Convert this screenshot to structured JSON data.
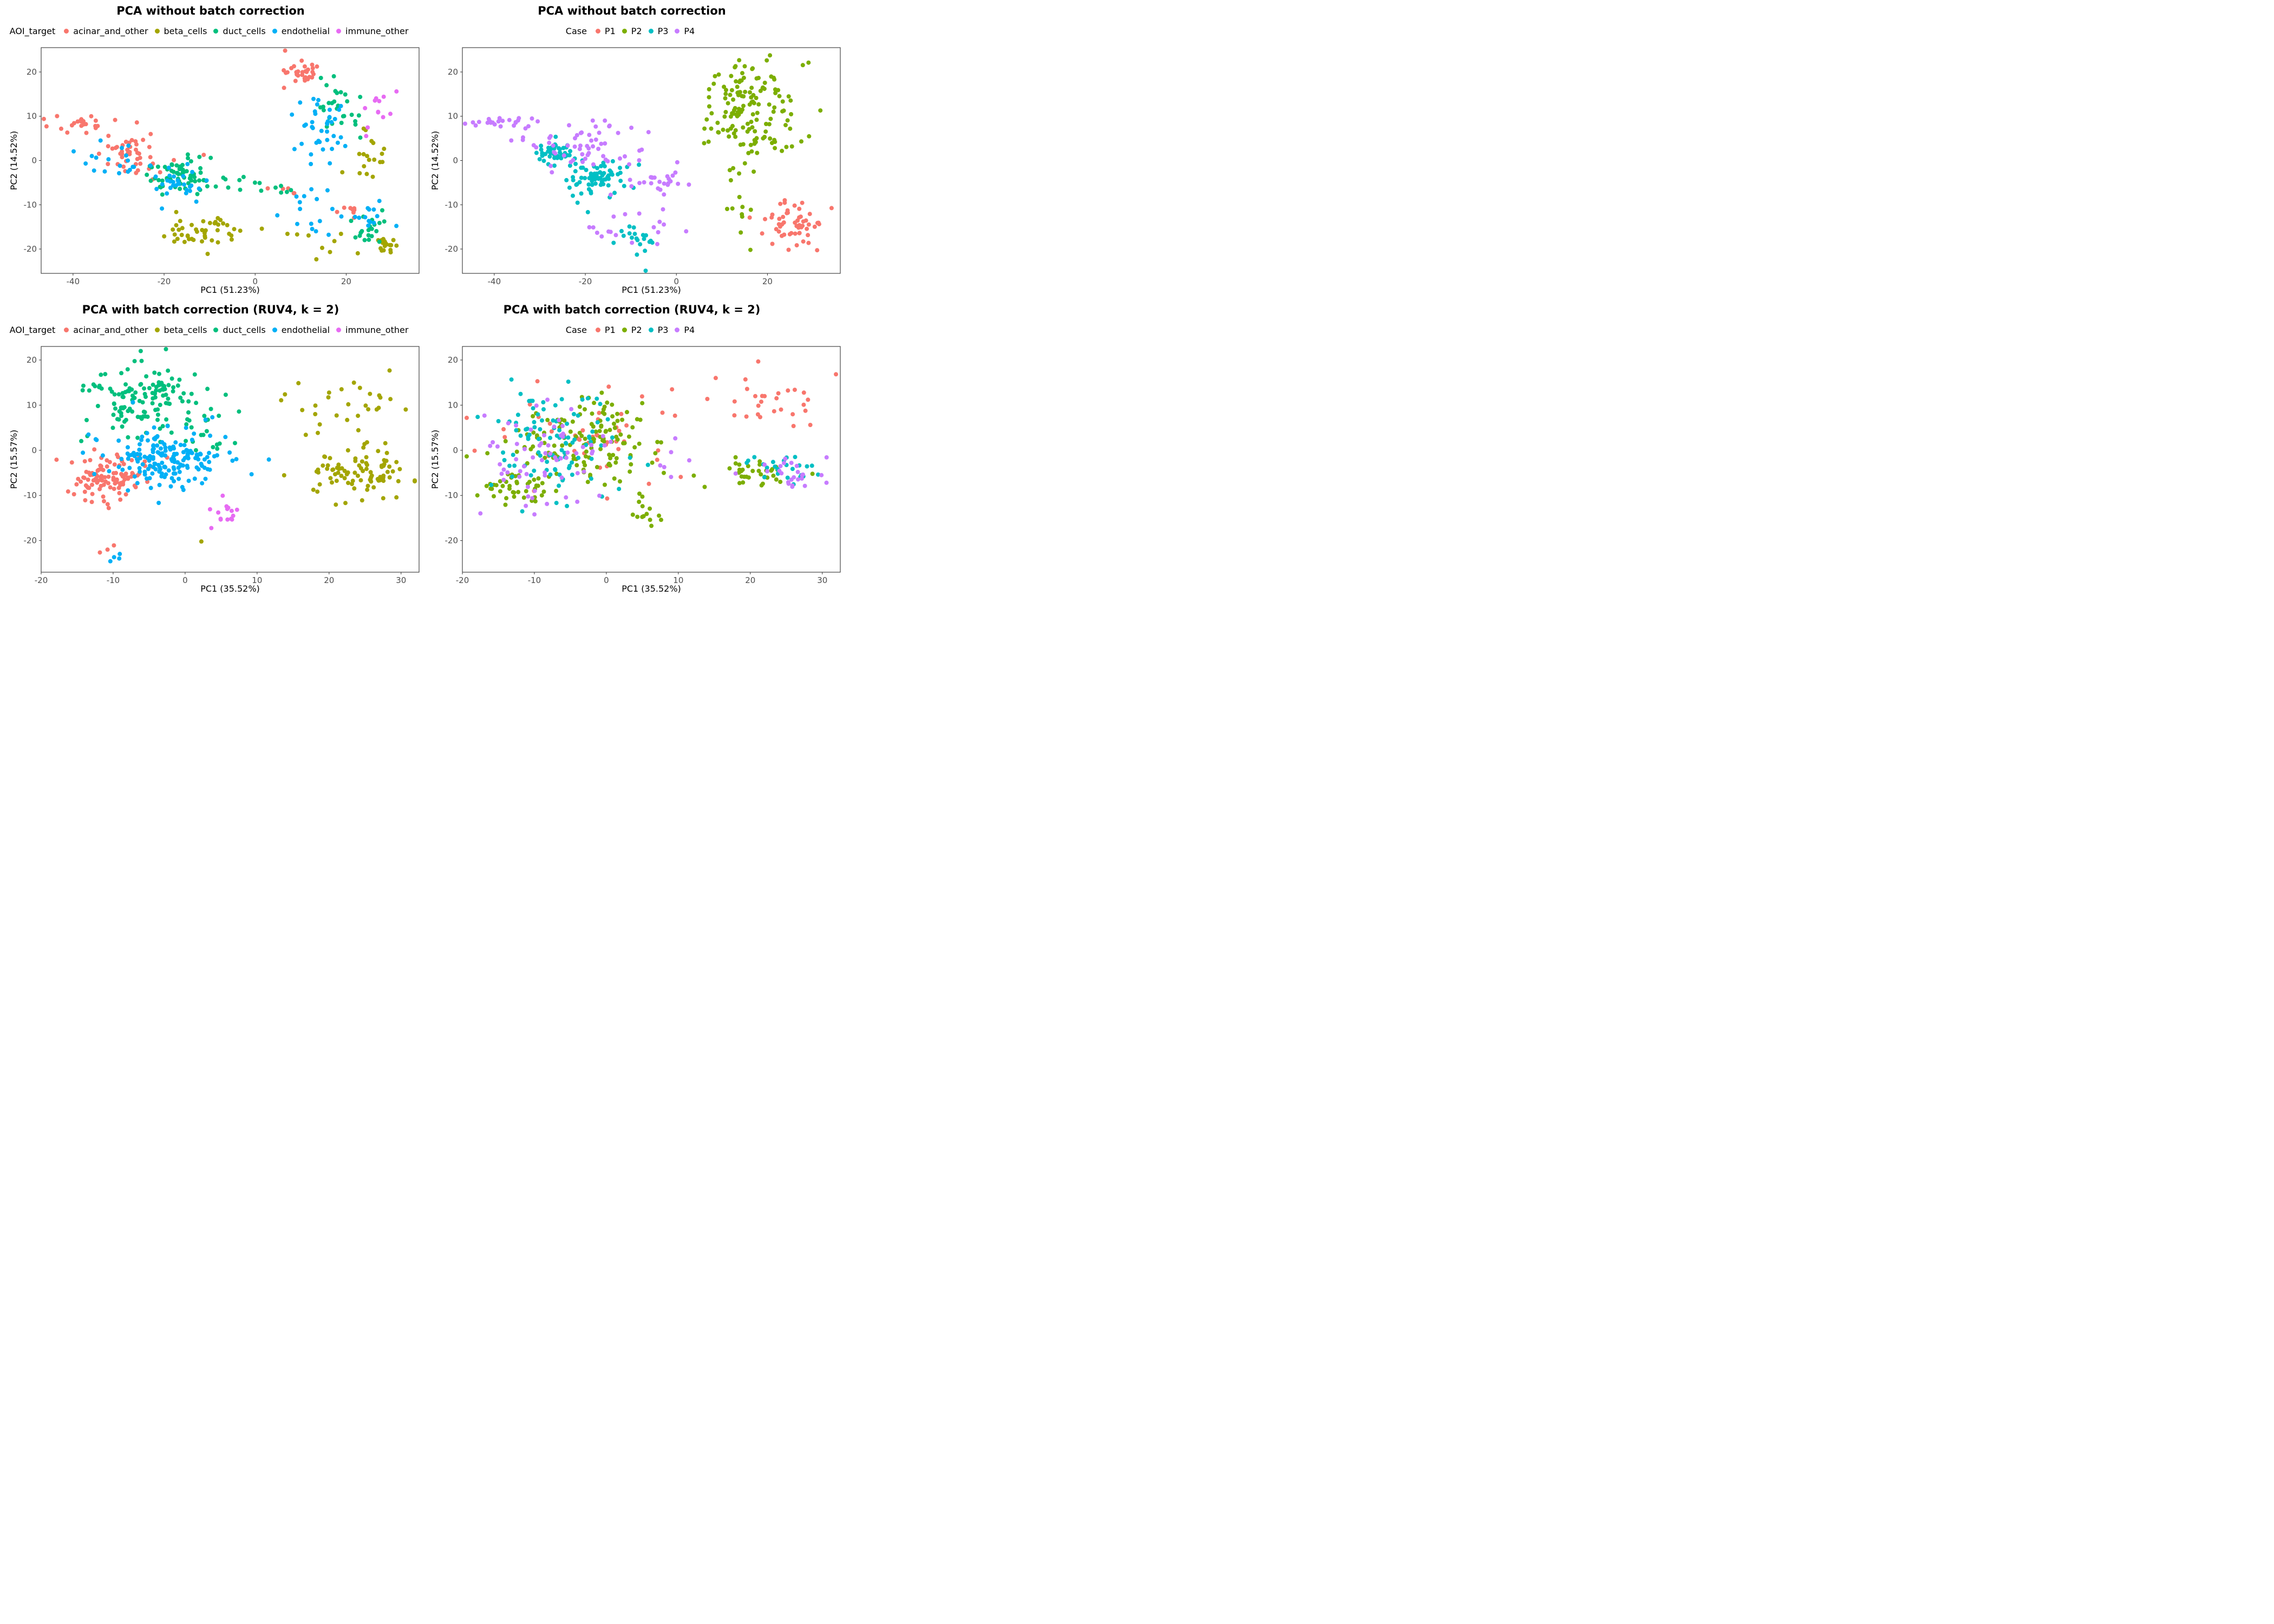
{
  "chart_data": [
    {
      "type": "scatter",
      "title": "PCA without batch correction",
      "xlabel": "PC1 (51.23%)",
      "ylabel": "PC2 (14.52%)",
      "xlim": [
        -47,
        36
      ],
      "ylim": [
        -25.5,
        25.5
      ],
      "xticks": [
        -40,
        -20,
        0,
        20
      ],
      "yticks": [
        -20,
        -10,
        0,
        10,
        20
      ],
      "grid": false,
      "legend_position": "top",
      "legend_title": "AOI_target",
      "series": [
        {
          "name": "acinar_and_other",
          "color": "#F8766D",
          "clusters": [
            {
              "x": -40,
              "y": 8.5,
              "sx": 3.5,
              "sy": 0.8,
              "n": 22
            },
            {
              "x": -27,
              "y": 2,
              "sx": 2.5,
              "sy": 2,
              "n": 35
            },
            {
              "x": -21,
              "y": -1,
              "sx": 4,
              "sy": 2.5,
              "n": 12
            },
            {
              "x": 10,
              "y": 20,
              "sx": 2,
              "sy": 2,
              "n": 30
            },
            {
              "x": 7,
              "y": -7,
              "sx": 2,
              "sy": 1,
              "n": 5
            },
            {
              "x": 21,
              "y": -12,
              "sx": 1.5,
              "sy": 1.5,
              "n": 8
            }
          ]
        },
        {
          "name": "beta_cells",
          "color": "#A3A500",
          "clusters": [
            {
              "x": -12,
              "y": -16,
              "sx": 6,
              "sy": 2,
              "n": 45
            },
            {
              "x": 26,
              "y": 2,
              "sx": 3,
              "sy": 3.5,
              "n": 18
            },
            {
              "x": 28.5,
              "y": -19,
              "sx": 1.2,
              "sy": 1,
              "n": 20
            },
            {
              "x": 18,
              "y": -21,
              "sx": 3,
              "sy": 2,
              "n": 6
            },
            {
              "x": 9,
              "y": -16,
              "sx": 2,
              "sy": 1,
              "n": 3
            }
          ]
        },
        {
          "name": "duct_cells",
          "color": "#00BF7D",
          "clusters": [
            {
              "x": -17,
              "y": -3,
              "sx": 4,
              "sy": 2,
              "n": 65
            },
            {
              "x": -5,
              "y": -4,
              "sx": 3,
              "sy": 1.2,
              "n": 10
            },
            {
              "x": 4,
              "y": -7,
              "sx": 2,
              "sy": 1,
              "n": 6
            },
            {
              "x": 18,
              "y": 12,
              "sx": 2.5,
              "sy": 3,
              "n": 28
            },
            {
              "x": 25,
              "y": -15,
              "sx": 2.5,
              "sy": 2,
              "n": 20
            }
          ]
        },
        {
          "name": "endothelial",
          "color": "#00B0F6",
          "clusters": [
            {
              "x": -30,
              "y": 1,
              "sx": 3.5,
              "sy": 3,
              "n": 18
            },
            {
              "x": -17,
              "y": -5,
              "sx": 3,
              "sy": 2.5,
              "n": 30
            },
            {
              "x": 14,
              "y": 8,
              "sx": 3,
              "sy": 4,
              "n": 38
            },
            {
              "x": 24,
              "y": -13,
              "sx": 3,
              "sy": 1.5,
              "n": 15
            },
            {
              "x": 12,
              "y": -14,
              "sx": 3,
              "sy": 4,
              "n": 14
            }
          ]
        },
        {
          "name": "immune_other",
          "color": "#E76BF3",
          "clusters": [
            {
              "x": 28,
              "y": 13,
              "sx": 1.5,
              "sy": 2,
              "n": 10
            },
            {
              "x": 24,
              "y": 6,
              "sx": 1,
              "sy": 1,
              "n": 2
            }
          ]
        }
      ]
    },
    {
      "type": "scatter",
      "title": "PCA without batch correction",
      "xlabel": "PC1 (51.23%)",
      "ylabel": "PC2 (14.52%)",
      "xlim": [
        -47,
        36
      ],
      "ylim": [
        -25.5,
        25.5
      ],
      "xticks": [
        -40,
        -20,
        0,
        20
      ],
      "yticks": [
        -20,
        -10,
        0,
        10,
        20
      ],
      "grid": false,
      "legend_position": "top",
      "legend_title": "Case",
      "series": [
        {
          "name": "P1",
          "color": "#F8766D",
          "clusters": [
            {
              "x": 26,
              "y": -15,
              "sx": 3,
              "sy": 3,
              "n": 55
            }
          ]
        },
        {
          "name": "P2",
          "color": "#7CAE00",
          "clusters": [
            {
              "x": 16,
              "y": 11,
              "sx": 5,
              "sy": 6,
              "n": 150
            },
            {
              "x": 13,
              "y": -11,
              "sx": 2,
              "sy": 4,
              "n": 10
            }
          ]
        },
        {
          "name": "P3",
          "color": "#00BFC4",
          "clusters": [
            {
              "x": -27,
              "y": 1.5,
              "sx": 2,
              "sy": 1.5,
              "n": 45
            },
            {
              "x": -17,
              "y": -4,
              "sx": 3,
              "sy": 2,
              "n": 75
            },
            {
              "x": -8,
              "y": -18,
              "sx": 2.5,
              "sy": 2,
              "n": 20
            }
          ]
        },
        {
          "name": "P4",
          "color": "#C77CFF",
          "clusters": [
            {
              "x": -40,
              "y": 8.5,
              "sx": 3.5,
              "sy": 0.8,
              "n": 22
            },
            {
              "x": -20,
              "y": 3,
              "sx": 7,
              "sy": 3,
              "n": 60
            },
            {
              "x": -5,
              "y": -5,
              "sx": 4,
              "sy": 2,
              "n": 25
            },
            {
              "x": -10,
              "y": -15,
              "sx": 5,
              "sy": 2,
              "n": 18
            }
          ]
        }
      ]
    },
    {
      "type": "scatter",
      "title": "PCA with batch correction (RUV4, k = 2)",
      "xlabel": "PC1 (35.52%)",
      "ylabel": "PC2 (15.57%)",
      "xlim": [
        -20,
        32.5
      ],
      "ylim": [
        -27,
        23
      ],
      "xticks": [
        -20,
        -10,
        0,
        10,
        20,
        30
      ],
      "yticks": [
        -20,
        -10,
        0,
        10,
        20
      ],
      "grid": false,
      "legend_position": "top",
      "legend_title": "AOI_target",
      "series": [
        {
          "name": "acinar_and_other",
          "color": "#F8766D",
          "clusters": [
            {
              "x": -11,
              "y": -6,
              "sx": 3,
              "sy": 2.5,
              "n": 110
            },
            {
              "x": -10,
              "y": -22,
              "sx": 1.5,
              "sy": 1.5,
              "n": 3
            }
          ]
        },
        {
          "name": "beta_cells",
          "color": "#A3A500",
          "clusters": [
            {
              "x": 24,
              "y": -5,
              "sx": 3.5,
              "sy": 2.5,
              "n": 90
            },
            {
              "x": 22,
              "y": 10,
              "sx": 4,
              "sy": 3,
              "n": 30
            },
            {
              "x": 2,
              "y": -19,
              "sx": 1,
              "sy": 1,
              "n": 1
            }
          ]
        },
        {
          "name": "duct_cells",
          "color": "#00BF7D",
          "clusters": [
            {
              "x": -6,
              "y": 11,
              "sx": 4,
              "sy": 4,
              "n": 130
            },
            {
              "x": 2,
              "y": 4,
              "sx": 3,
              "sy": 4,
              "n": 25
            }
          ]
        },
        {
          "name": "endothelial",
          "color": "#00B0F6",
          "clusters": [
            {
              "x": -3,
              "y": -2,
              "sx": 4,
              "sy": 3,
              "n": 175
            },
            {
              "x": 10,
              "y": -4,
              "sx": 2,
              "sy": 2,
              "n": 3
            },
            {
              "x": -9,
              "y": -22.5,
              "sx": 1.5,
              "sy": 1,
              "n": 4
            }
          ]
        },
        {
          "name": "immune_other",
          "color": "#E76BF3",
          "clusters": [
            {
              "x": 5.5,
              "y": -14.5,
              "sx": 0.8,
              "sy": 1.5,
              "n": 15
            }
          ]
        }
      ]
    },
    {
      "type": "scatter",
      "title": "PCA with batch correction (RUV4, k = 2)",
      "xlabel": "PC1 (35.52%)",
      "ylabel": "PC2 (15.57%)",
      "xlim": [
        -20,
        32.5
      ],
      "ylim": [
        -27,
        23
      ],
      "xticks": [
        -20,
        -10,
        0,
        10,
        20,
        30
      ],
      "yticks": [
        -20,
        -10,
        0,
        10,
        20
      ],
      "grid": false,
      "legend_position": "top",
      "legend_title": "Case",
      "series": [
        {
          "name": "P1",
          "color": "#F8766D",
          "clusters": [
            {
              "x": 22,
              "y": 10,
              "sx": 4,
              "sy": 3,
              "n": 30
            },
            {
              "x": -3,
              "y": 3,
              "sx": 6,
              "sy": 6,
              "n": 45
            }
          ]
        },
        {
          "name": "P2",
          "color": "#7CAE00",
          "clusters": [
            {
              "x": -3,
              "y": 2,
              "sx": 5,
              "sy": 5,
              "n": 140
            },
            {
              "x": -13,
              "y": -8,
              "sx": 3,
              "sy": 2,
              "n": 40
            },
            {
              "x": 21,
              "y": -5,
              "sx": 3,
              "sy": 2,
              "n": 35
            },
            {
              "x": 5.5,
              "y": -14,
              "sx": 1,
              "sy": 2,
              "n": 12
            }
          ]
        },
        {
          "name": "P3",
          "color": "#00BFC4",
          "clusters": [
            {
              "x": -7,
              "y": 3,
              "sx": 4,
              "sy": 6,
              "n": 100
            },
            {
              "x": 25,
              "y": -4,
              "sx": 3,
              "sy": 1.8,
              "n": 25
            }
          ]
        },
        {
          "name": "P4",
          "color": "#C77CFF",
          "clusters": [
            {
              "x": -9,
              "y": 0,
              "sx": 4,
              "sy": 7,
              "n": 65
            },
            {
              "x": 26,
              "y": -5,
              "sx": 2.5,
              "sy": 2,
              "n": 25
            },
            {
              "x": 8,
              "y": -4,
              "sx": 2,
              "sy": 3,
              "n": 6
            }
          ]
        }
      ]
    }
  ]
}
